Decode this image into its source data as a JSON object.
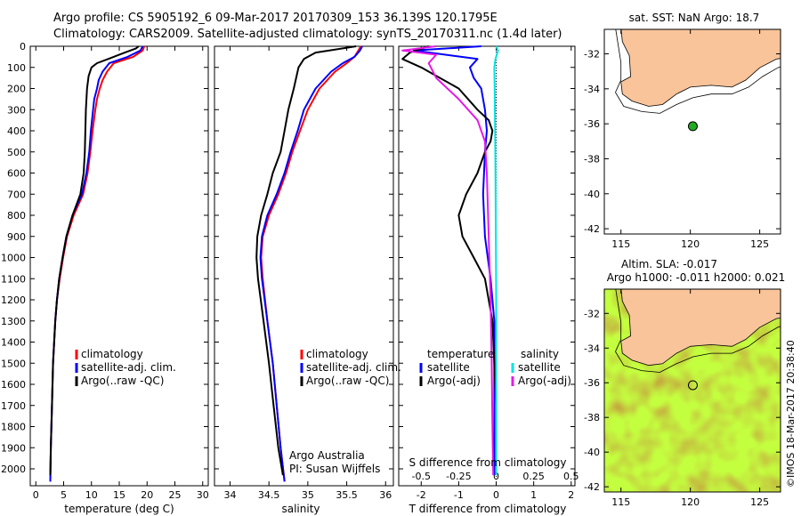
{
  "header": {
    "line1": "Argo profile: CS 5905192_6 09-Mar-2017 20170309_153 36.139S 120.1795E",
    "line2": "Climatology: CARS2009. Satellite-adjusted climatology: synTS_20170311.nc (1.4d later)"
  },
  "credit": "©IMOS 18-Mar-2017 20:38:40",
  "colors": {
    "climatology": "#ff0000",
    "satellite": "#0000ff",
    "argo": "#000000",
    "salinity_satellite": "#00e5e5",
    "salinity_argo": "#e619e6",
    "land": "#f9c49a",
    "marker_green": "#22aa22"
  },
  "chart_data": [
    {
      "type": "line",
      "xlabel": "temperature (deg C)",
      "ylabel": "",
      "xlim": [
        -1,
        31
      ],
      "ylim": [
        2080,
        0
      ],
      "xticks": [
        "0",
        "5",
        "10",
        "15",
        "20",
        "25",
        "30"
      ],
      "xtick_values": [
        0,
        5,
        10,
        15,
        20,
        25,
        30
      ],
      "yticks": [
        "0",
        "100",
        "200",
        "300",
        "400",
        "500",
        "600",
        "700",
        "800",
        "900",
        "1000",
        "1100",
        "1200",
        "1300",
        "1400",
        "1500",
        "1600",
        "1700",
        "1800",
        "1900",
        "2000"
      ],
      "legend": [
        {
          "label": "climatology",
          "color": "#ff0000"
        },
        {
          "label": "satellite-adj. clim.",
          "color": "#0000ff"
        },
        {
          "label": "Argo(..raw -QC)",
          "color": "#000000"
        }
      ],
      "series": [
        {
          "color": "#ff0000",
          "depth": [
            0,
            20,
            50,
            80,
            120,
            160,
            200,
            250,
            300,
            400,
            500,
            600,
            700,
            800,
            900,
            1000,
            1100,
            1200,
            1300,
            1500,
            1700,
            1900,
            2060
          ],
          "x": [
            19.5,
            19.2,
            17.5,
            14.0,
            12.8,
            12.0,
            11.5,
            11.0,
            10.7,
            10.2,
            9.8,
            9.3,
            8.5,
            6.8,
            5.6,
            4.9,
            4.3,
            3.8,
            3.5,
            3.1,
            2.9,
            2.7,
            2.6
          ]
        },
        {
          "color": "#0000ff",
          "depth": [
            0,
            20,
            50,
            80,
            120,
            160,
            200,
            250,
            300,
            400,
            500,
            600,
            700,
            800,
            900,
            1000,
            1100,
            1200,
            1300,
            1500,
            1700,
            1900,
            2060
          ],
          "x": [
            19.2,
            18.8,
            16.5,
            13.2,
            12.0,
            11.3,
            11.0,
            10.5,
            10.3,
            9.9,
            9.6,
            9.1,
            8.3,
            6.6,
            5.5,
            4.8,
            4.2,
            3.8,
            3.5,
            3.1,
            2.9,
            2.7,
            2.6
          ]
        },
        {
          "color": "#000000",
          "depth": [
            0,
            10,
            30,
            60,
            80,
            100,
            140,
            200,
            300,
            400,
            500,
            600,
            700,
            800,
            900,
            1000,
            1100,
            1200,
            1300,
            1500,
            1700,
            1900,
            2030
          ],
          "x": [
            18.5,
            18.0,
            16.0,
            13.0,
            11.0,
            10.0,
            9.5,
            9.2,
            9.0,
            8.9,
            8.8,
            8.6,
            8.0,
            6.6,
            5.5,
            4.8,
            4.2,
            3.8,
            3.5,
            3.1,
            2.9,
            2.7,
            2.6
          ]
        }
      ]
    },
    {
      "type": "line",
      "xlabel": "salinity",
      "xlim": [
        33.8,
        36.1
      ],
      "ylim": [
        2080,
        0
      ],
      "xticks": [
        "34",
        "34.5",
        "35",
        "35.5",
        "36"
      ],
      "xtick_values": [
        34,
        34.5,
        35,
        35.5,
        36
      ],
      "legend": [
        {
          "label": "climatology",
          "color": "#ff0000"
        },
        {
          "label": "satellite-adj. clim.",
          "color": "#0000ff"
        },
        {
          "label": "Argo(..raw -QC)",
          "color": "#000000"
        }
      ],
      "annotation": [
        "Argo Australia",
        "PI: Susan Wijffels"
      ],
      "series": [
        {
          "color": "#ff0000",
          "depth": [
            0,
            20,
            50,
            80,
            120,
            200,
            300,
            400,
            500,
            600,
            700,
            800,
            900,
            1000,
            1100,
            1300,
            1500,
            1700,
            1900,
            2060
          ],
          "x": [
            35.68,
            35.65,
            35.6,
            35.5,
            35.35,
            35.15,
            35.0,
            34.9,
            34.8,
            34.72,
            34.62,
            34.5,
            34.42,
            34.4,
            34.42,
            34.48,
            34.55,
            34.6,
            34.65,
            34.7
          ]
        },
        {
          "color": "#0000ff",
          "depth": [
            0,
            20,
            50,
            80,
            120,
            200,
            300,
            400,
            500,
            600,
            700,
            800,
            900,
            1000,
            1100,
            1300,
            1500,
            1700,
            1900,
            2060
          ],
          "x": [
            35.7,
            35.67,
            35.6,
            35.45,
            35.3,
            35.1,
            34.95,
            34.87,
            34.78,
            34.7,
            34.6,
            34.48,
            34.41,
            34.39,
            34.41,
            34.48,
            34.55,
            34.6,
            34.65,
            34.7
          ]
        },
        {
          "color": "#000000",
          "depth": [
            0,
            10,
            30,
            60,
            100,
            200,
            300,
            400,
            500,
            600,
            700,
            800,
            900,
            1000,
            1100,
            1300,
            1500,
            1700,
            1900,
            2030
          ],
          "x": [
            35.62,
            35.45,
            35.1,
            34.95,
            34.88,
            34.82,
            34.75,
            34.7,
            34.65,
            34.55,
            34.48,
            34.4,
            34.35,
            34.34,
            34.36,
            34.43,
            34.5,
            34.56,
            34.62,
            34.68
          ]
        }
      ]
    },
    {
      "type": "line",
      "xlabel": "T difference from climatology",
      "top_axis_label": "S difference from climatology",
      "xlim": [
        -2.6,
        2.1
      ],
      "ylim": [
        2080,
        0
      ],
      "xticks": [
        "-2",
        "-1",
        "0",
        "1",
        "2"
      ],
      "xtick_values": [
        -2,
        -1,
        0,
        1,
        2
      ],
      "top_ticks": [
        "-0.5",
        "-0.25",
        "0",
        "0.25",
        "0.5"
      ],
      "top_tick_values": [
        -0.5,
        -0.25,
        0,
        0.25,
        0.5
      ],
      "legend_temperature": {
        "title": "temperature",
        "items": [
          {
            "label": "satellite",
            "color": "#0000ff"
          },
          {
            "label": "Argo(-adj)",
            "color": "#000000"
          }
        ]
      },
      "legend_salinity": {
        "title": "salinity",
        "items": [
          {
            "label": "satellite",
            "color": "#00e5e5"
          },
          {
            "label": "Argo(-adj)",
            "color": "#e619e6"
          }
        ]
      },
      "series": [
        {
          "color": "#0000ff",
          "depth": [
            0,
            20,
            60,
            100,
            150,
            200,
            300,
            400,
            500,
            700,
            900,
            1100,
            1300,
            1500,
            1700,
            1900,
            2030
          ],
          "x": [
            -0.4,
            -2.2,
            -0.5,
            -0.7,
            -0.6,
            -0.4,
            -0.3,
            -0.25,
            -0.3,
            -0.35,
            -0.3,
            -0.15,
            -0.05,
            -0.05,
            -0.05,
            -0.05,
            -0.05
          ]
        },
        {
          "color": "#000000",
          "depth": [
            0,
            30,
            60,
            100,
            150,
            200,
            300,
            350,
            400,
            450,
            500,
            600,
            700,
            800,
            900,
            1000,
            1100,
            1200,
            1300,
            1500,
            1700,
            1900,
            2030
          ],
          "x": [
            -1.8,
            -2.3,
            -2.5,
            -2.0,
            -1.5,
            -1.0,
            -0.5,
            -0.2,
            -0.1,
            -0.15,
            -0.3,
            -0.5,
            -0.8,
            -1.0,
            -0.9,
            -0.6,
            -0.3,
            -0.2,
            -0.1,
            -0.05,
            0,
            0,
            0
          ]
        },
        {
          "color": "#00e5e5",
          "depth": [
            0,
            20,
            60,
            100,
            200,
            400,
            600,
            900,
            1200,
            1500,
            1800,
            2030
          ],
          "x": [
            0.0,
            0.05,
            -0.02,
            -0.05,
            -0.04,
            -0.03,
            -0.02,
            -0.01,
            0.0,
            0.0,
            0.0,
            0.0
          ]
        },
        {
          "color": "#e619e6",
          "depth": [
            0,
            20,
            40,
            80,
            150,
            250,
            350,
            450,
            600,
            900,
            1200,
            1500,
            1800,
            2030
          ],
          "x": [
            -1.6,
            -2.5,
            -1.6,
            -1.8,
            -1.6,
            -1.0,
            -0.5,
            -0.3,
            -0.25,
            -0.2,
            -0.15,
            -0.12,
            -0.1,
            -0.08
          ]
        }
      ]
    },
    {
      "type": "map",
      "title": "sat. SST: NaN Argo: 18.7",
      "xticks": [
        "115",
        "120",
        "125"
      ],
      "yticks": [
        "-32",
        "-34",
        "-36",
        "-38",
        "-40",
        "-42"
      ],
      "lon_range": [
        113.8,
        126.5
      ],
      "lat_range": [
        -42.3,
        -30.6
      ],
      "marker": {
        "lon": 120.18,
        "lat": -36.14
      }
    },
    {
      "type": "map",
      "title_line1": "Altim. SLA: -0.017",
      "title_line2": "Argo h1000: -0.011 h2000: 0.021",
      "xticks": [
        "115",
        "120",
        "125"
      ],
      "yticks": [
        "-32",
        "-34",
        "-36",
        "-38",
        "-40",
        "-42"
      ],
      "lon_range": [
        113.8,
        126.5
      ],
      "lat_range": [
        -42.3,
        -30.6
      ],
      "marker": {
        "lon": 120.18,
        "lat": -36.14
      }
    }
  ]
}
